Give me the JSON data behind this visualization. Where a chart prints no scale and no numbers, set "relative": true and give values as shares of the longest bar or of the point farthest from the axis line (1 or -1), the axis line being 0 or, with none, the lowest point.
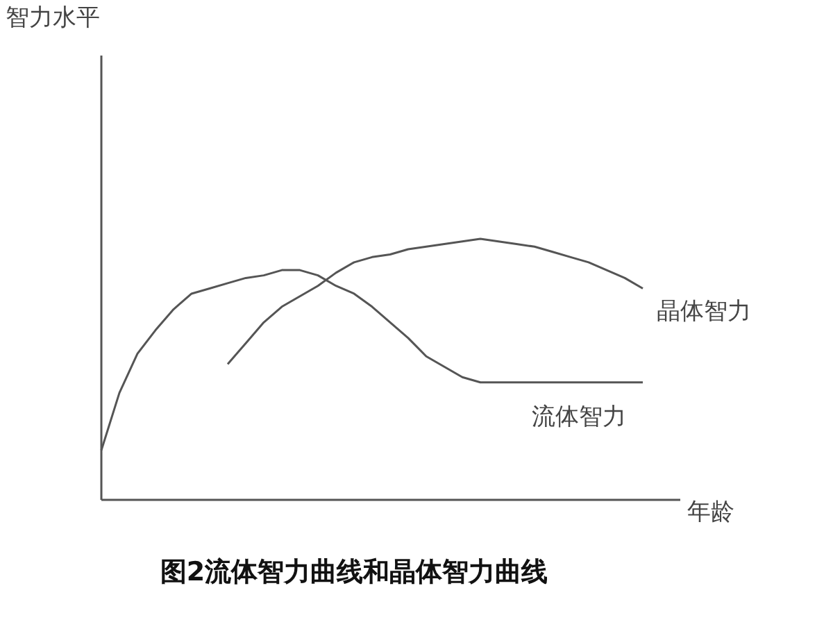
{
  "chart_data": {
    "type": "line",
    "relative": true,
    "title": "图2流体智力曲线和晶体智力曲线",
    "xlabel": "年龄",
    "annotations": [
      "智力水平"
    ],
    "categories": [
      null,
      null,
      null,
      null,
      null,
      null,
      null,
      null,
      null,
      null,
      null,
      null,
      null,
      null,
      null,
      null,
      null,
      null,
      null,
      null,
      null,
      null,
      null,
      null,
      null,
      null,
      null,
      null,
      null,
      null,
      null
    ],
    "series": [
      {
        "name": "晶体智力",
        "color": "#555555",
        "values": [
          null,
          null,
          null,
          null,
          null,
          null,
          null,
          0.52,
          0.6,
          0.68,
          0.74,
          0.78,
          0.82,
          0.87,
          0.91,
          0.93,
          0.94,
          0.96,
          0.97,
          0.98,
          0.99,
          1,
          0.99,
          0.98,
          0.97,
          0.95,
          0.93,
          0.91,
          0.88,
          0.85,
          0.81
        ]
      },
      {
        "name": "流体智力",
        "color": "#555555",
        "values": [
          0.19,
          0.41,
          0.56,
          0.65,
          0.73,
          0.79,
          0.81,
          0.83,
          0.85,
          0.86,
          0.88,
          0.88,
          0.86,
          0.82,
          0.79,
          0.74,
          0.68,
          0.62,
          0.55,
          0.51,
          0.47,
          0.45,
          0.45,
          0.45,
          0.45,
          0.45,
          0.45,
          0.45,
          0.45,
          0.45,
          0.45
        ]
      }
    ]
  }
}
